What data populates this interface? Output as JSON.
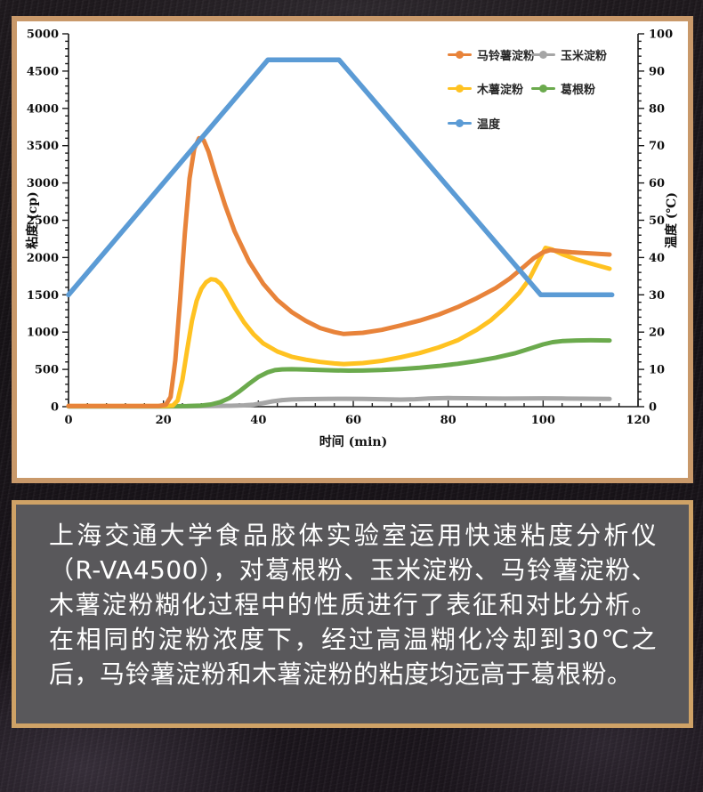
{
  "theme": {
    "frame_border": "#C9996A",
    "caption_border": "#CFA266",
    "caption_bg": "#59585B",
    "caption_text": "#FFFFFF",
    "chart_bg": "#FFFFFF",
    "axis_color": "#1A1A1A"
  },
  "chart_data": {
    "type": "line",
    "title": "",
    "xlabel": "时间 (min)",
    "ylabel_left": "粘度 (cp)",
    "ylabel_right": "温度 (℃)",
    "xlim": [
      0,
      120
    ],
    "ylim_left": [
      0,
      5000
    ],
    "ylim_right": [
      0,
      100
    ],
    "x_major_tick": 20,
    "x_minor_tick": 4,
    "y_left_major_tick": 500,
    "y_left_minor_tick": 100,
    "y_right_major_tick": 10,
    "y_right_minor_tick": 2,
    "grid": false,
    "legend_position": "top-right-inside",
    "series": [
      {
        "name": "马铃薯淀粉",
        "color": "#E8833A",
        "axis": "left",
        "points": [
          [
            0,
            10
          ],
          [
            5,
            10
          ],
          [
            10,
            10
          ],
          [
            15,
            10
          ],
          [
            19,
            10
          ],
          [
            20.5,
            25
          ],
          [
            21.5,
            130
          ],
          [
            22.5,
            620
          ],
          [
            23.5,
            1420
          ],
          [
            24.5,
            2320
          ],
          [
            25.5,
            3060
          ],
          [
            26.5,
            3460
          ],
          [
            27.5,
            3600
          ],
          [
            28.5,
            3570
          ],
          [
            29.5,
            3420
          ],
          [
            31,
            3100
          ],
          [
            33,
            2700
          ],
          [
            35,
            2350
          ],
          [
            38,
            1950
          ],
          [
            41,
            1650
          ],
          [
            44,
            1430
          ],
          [
            47,
            1270
          ],
          [
            50,
            1150
          ],
          [
            53,
            1055
          ],
          [
            56,
            1000
          ],
          [
            58,
            975
          ],
          [
            62,
            990
          ],
          [
            66,
            1030
          ],
          [
            70,
            1090
          ],
          [
            74,
            1155
          ],
          [
            78,
            1235
          ],
          [
            82,
            1335
          ],
          [
            86,
            1455
          ],
          [
            90,
            1590
          ],
          [
            93,
            1720
          ],
          [
            96,
            1880
          ],
          [
            98,
            1990
          ],
          [
            100,
            2070
          ],
          [
            101.5,
            2100
          ],
          [
            103,
            2090
          ],
          [
            106,
            2070
          ],
          [
            110,
            2055
          ],
          [
            114,
            2040
          ]
        ]
      },
      {
        "name": "玉米淀粉",
        "color": "#A6A6A6",
        "axis": "left",
        "points": [
          [
            0,
            4
          ],
          [
            5,
            4
          ],
          [
            10,
            4
          ],
          [
            15,
            4
          ],
          [
            20,
            4
          ],
          [
            25,
            5
          ],
          [
            30,
            8
          ],
          [
            34,
            12
          ],
          [
            37,
            18
          ],
          [
            39,
            28
          ],
          [
            41,
            48
          ],
          [
            43,
            72
          ],
          [
            45,
            88
          ],
          [
            47,
            97
          ],
          [
            50,
            102
          ],
          [
            54,
            104
          ],
          [
            58,
            106
          ],
          [
            62,
            104
          ],
          [
            66,
            100
          ],
          [
            70,
            96
          ],
          [
            73,
            100
          ],
          [
            76,
            110
          ],
          [
            80,
            116
          ],
          [
            84,
            113
          ],
          [
            88,
            110
          ],
          [
            92,
            109
          ],
          [
            96,
            110
          ],
          [
            100,
            112
          ],
          [
            104,
            110
          ],
          [
            108,
            107
          ],
          [
            114,
            104
          ]
        ]
      },
      {
        "name": "木薯淀粉",
        "color": "#FFC221",
        "axis": "left",
        "points": [
          [
            0,
            8
          ],
          [
            5,
            8
          ],
          [
            10,
            8
          ],
          [
            15,
            8
          ],
          [
            20,
            8
          ],
          [
            22,
            16
          ],
          [
            23,
            85
          ],
          [
            24,
            360
          ],
          [
            25,
            760
          ],
          [
            26,
            1150
          ],
          [
            27,
            1420
          ],
          [
            28,
            1580
          ],
          [
            29,
            1670
          ],
          [
            30,
            1710
          ],
          [
            31,
            1700
          ],
          [
            32,
            1650
          ],
          [
            33,
            1560
          ],
          [
            35,
            1330
          ],
          [
            37,
            1130
          ],
          [
            39,
            970
          ],
          [
            41,
            850
          ],
          [
            44,
            740
          ],
          [
            47,
            670
          ],
          [
            50,
            630
          ],
          [
            53,
            600
          ],
          [
            56,
            580
          ],
          [
            58,
            572
          ],
          [
            62,
            585
          ],
          [
            66,
            615
          ],
          [
            70,
            662
          ],
          [
            74,
            720
          ],
          [
            78,
            795
          ],
          [
            82,
            890
          ],
          [
            86,
            1030
          ],
          [
            89,
            1160
          ],
          [
            92,
            1330
          ],
          [
            95,
            1530
          ],
          [
            97,
            1700
          ],
          [
            99,
            1950
          ],
          [
            100.5,
            2130
          ],
          [
            102,
            2105
          ],
          [
            104,
            2045
          ],
          [
            107,
            1975
          ],
          [
            110,
            1920
          ],
          [
            114,
            1850
          ]
        ]
      },
      {
        "name": "葛根粉",
        "color": "#6BAA4D",
        "axis": "left",
        "points": [
          [
            0,
            5
          ],
          [
            5,
            5
          ],
          [
            10,
            5
          ],
          [
            15,
            5
          ],
          [
            20,
            5
          ],
          [
            25,
            8
          ],
          [
            28,
            15
          ],
          [
            30,
            30
          ],
          [
            32,
            62
          ],
          [
            34,
            118
          ],
          [
            36,
            205
          ],
          [
            38,
            305
          ],
          [
            40,
            398
          ],
          [
            42,
            462
          ],
          [
            43.5,
            490
          ],
          [
            45,
            500
          ],
          [
            47,
            502
          ],
          [
            50,
            498
          ],
          [
            53,
            492
          ],
          [
            56,
            487
          ],
          [
            59,
            483
          ],
          [
            62,
            484
          ],
          [
            66,
            492
          ],
          [
            70,
            505
          ],
          [
            74,
            522
          ],
          [
            78,
            545
          ],
          [
            82,
            575
          ],
          [
            86,
            612
          ],
          [
            90,
            658
          ],
          [
            94,
            715
          ],
          [
            97,
            775
          ],
          [
            100,
            835
          ],
          [
            102,
            865
          ],
          [
            104,
            880
          ],
          [
            107,
            888
          ],
          [
            110,
            890
          ],
          [
            114,
            888
          ]
        ]
      },
      {
        "name": "温度",
        "color": "#5B9BD5",
        "axis": "right",
        "points": [
          [
            0,
            30
          ],
          [
            42,
            93
          ],
          [
            57,
            93
          ],
          [
            99.5,
            30
          ],
          [
            114.5,
            30
          ]
        ]
      }
    ]
  },
  "summary": {
    "text": "上海交通大学食品胶体实验室运用快速粘度分析仪（R-VA4500），对葛根粉、玉米淀粉、马铃薯淀粉、木薯淀粉糊化过程中的性质进行了表征和对比分析。在相同的淀粉浓度下，经过高温糊化冷却到30℃之后，马铃薯淀粉和木薯淀粉的粘度均远高于葛根粉。"
  }
}
